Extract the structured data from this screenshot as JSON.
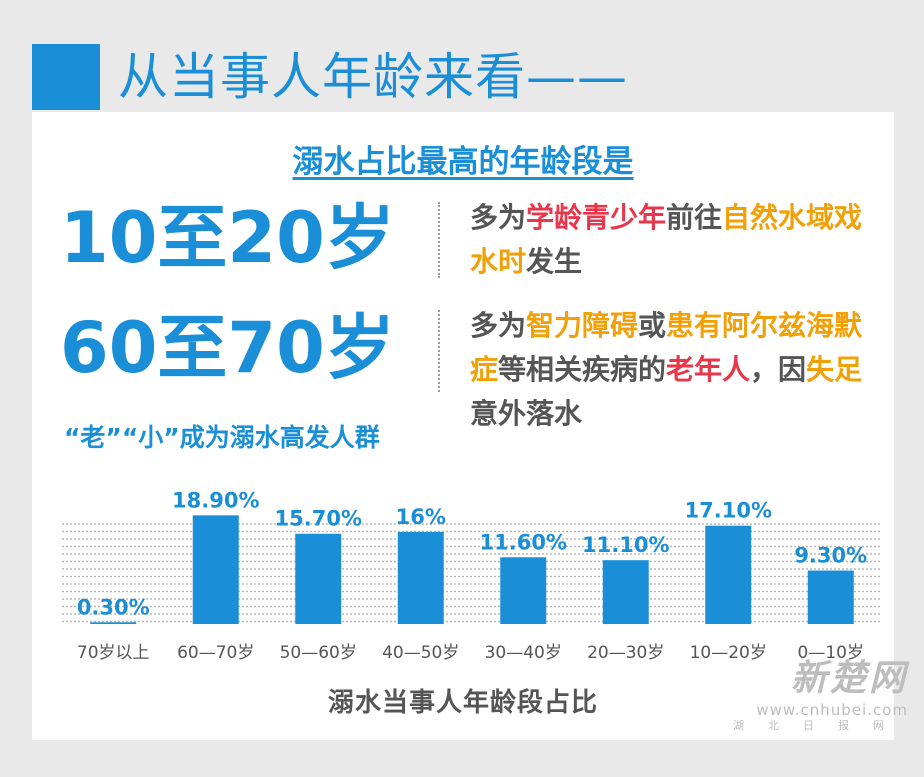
{
  "header": {
    "title": "从当事人年龄来看——"
  },
  "subtitle": "溺水占比最高的年龄段是",
  "groups": [
    {
      "age": "10至20岁",
      "desc": [
        {
          "t": "多为",
          "c": "gray"
        },
        {
          "t": "学龄青少年",
          "c": "red"
        },
        {
          "t": "前往",
          "c": "gray"
        },
        {
          "t": "自然水域戏水时",
          "c": "orange"
        },
        {
          "t": "发生",
          "c": "gray"
        }
      ]
    },
    {
      "age": "60至70岁",
      "desc": [
        {
          "t": "多为",
          "c": "gray"
        },
        {
          "t": "智力障碍",
          "c": "orange"
        },
        {
          "t": "或",
          "c": "gray"
        },
        {
          "t": "患有阿尔兹海默症",
          "c": "orange"
        },
        {
          "t": "等相关疾病的",
          "c": "gray"
        },
        {
          "t": "老年人",
          "c": "red"
        },
        {
          "t": "，因",
          "c": "gray"
        },
        {
          "t": "失足",
          "c": "orange"
        },
        {
          "t": "意外落水",
          "c": "gray"
        }
      ]
    }
  ],
  "subcaption": "“老”“小”成为溺水高发人群",
  "chart_data": {
    "type": "bar",
    "categories": [
      "70岁以上",
      "60—70岁",
      "50—60岁",
      "40—50岁",
      "30—40岁",
      "20—30岁",
      "10—20岁",
      "0—10岁"
    ],
    "values": [
      0.3,
      18.9,
      15.7,
      16,
      11.6,
      11.1,
      17.1,
      9.3
    ],
    "data_labels": [
      "0.30%",
      "18.90%",
      "15.70%",
      "16%",
      "11.60%",
      "11.10%",
      "17.10%",
      "9.30%"
    ],
    "unit": "%",
    "xlabel": "溺水当事人年龄段占比",
    "ylim": [
      0,
      20
    ],
    "grid": true,
    "bar_color": "#1a8fd8"
  },
  "watermark": {
    "name": "新楚网",
    "url": "www.cnhubei.com",
    "sub": "湖北日报网"
  },
  "colors": {
    "accent": "#1a8fd8",
    "red": "#e8364a",
    "orange": "#f2a007",
    "text": "#555555"
  }
}
